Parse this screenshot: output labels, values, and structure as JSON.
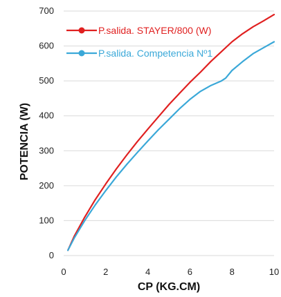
{
  "chart_data": {
    "type": "line",
    "title": "",
    "xlabel": "CP (KG.CM)",
    "ylabel": "POTENCIA (W)",
    "xlim": [
      0,
      10
    ],
    "ylim": [
      0,
      700
    ],
    "x_ticks": [
      "0",
      "2",
      "4",
      "6",
      "8",
      "10"
    ],
    "y_ticks": [
      "0",
      "100",
      "200",
      "300",
      "400",
      "500",
      "600",
      "700"
    ],
    "grid": "horizontal",
    "legend_position": "top-left",
    "series": [
      {
        "name": "P.salida. STAYER/800 (W)",
        "color": "#e02020",
        "x": [
          0.2,
          0.5,
          1,
          1.5,
          2,
          2.5,
          3,
          3.5,
          4,
          4.5,
          5,
          5.5,
          6,
          6.5,
          7,
          7.5,
          8,
          8.5,
          9,
          9.5,
          10
        ],
        "y": [
          15,
          55,
          110,
          160,
          205,
          248,
          288,
          326,
          362,
          397,
          432,
          464,
          496,
          525,
          556,
          584,
          612,
          635,
          655,
          672,
          690
        ]
      },
      {
        "name": "P.salida. Competencia Nº1",
        "color": "#3aa8d8",
        "x": [
          0.2,
          0.5,
          1,
          1.5,
          2,
          2.5,
          3,
          3.5,
          4,
          4.5,
          5,
          5.5,
          6,
          6.5,
          7,
          7.5,
          7.7,
          8,
          8.5,
          9,
          9.5,
          10
        ],
        "y": [
          15,
          50,
          100,
          145,
          186,
          225,
          261,
          295,
          328,
          360,
          390,
          420,
          447,
          470,
          487,
          500,
          508,
          530,
          555,
          578,
          595,
          612
        ]
      }
    ]
  }
}
